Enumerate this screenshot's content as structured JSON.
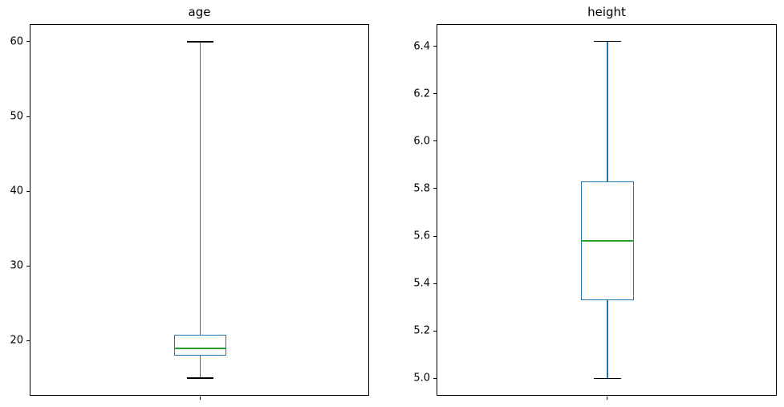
{
  "figure": {
    "background": "#ffffff"
  },
  "chart_data": [
    {
      "type": "box",
      "title": "age",
      "orientation": "vertical",
      "stats": {
        "whisker_low": 15,
        "q1": 18,
        "median": 19,
        "q3": 20.75,
        "whisker_high": 60
      },
      "ylim": [
        12.75,
        62.25
      ],
      "yticks": [
        20,
        30,
        40,
        50,
        60
      ],
      "ytick_labels": [
        "20",
        "30",
        "40",
        "50",
        "60"
      ],
      "xtick_labels": [
        ""
      ],
      "xlabel": "",
      "ylabel": "",
      "grid": false,
      "legend": "none",
      "colors": {
        "box": "#1f77b4",
        "whisker": "#1f77b4",
        "cap": "#000000",
        "median": "#2ca02c",
        "spine": "#000000",
        "text": "#000000"
      }
    },
    {
      "type": "box",
      "title": "height",
      "orientation": "vertical",
      "stats": {
        "whisker_low": 5.0,
        "q1": 5.33,
        "median": 5.58,
        "q3": 5.83,
        "whisker_high": 6.42
      },
      "ylim": [
        4.93,
        6.49
      ],
      "yticks": [
        5.0,
        5.2,
        5.4,
        5.6,
        5.8,
        6.0,
        6.2,
        6.4
      ],
      "ytick_labels": [
        "5.0",
        "5.2",
        "5.4",
        "5.6",
        "5.8",
        "6.0",
        "6.2",
        "6.4"
      ],
      "xtick_labels": [
        ""
      ],
      "xlabel": "",
      "ylabel": "",
      "grid": false,
      "legend": "none",
      "colors": {
        "box": "#1f77b4",
        "whisker": "#1f77b4",
        "cap": "#000000",
        "median": "#2ca02c",
        "spine": "#000000",
        "text": "#000000"
      }
    }
  ]
}
